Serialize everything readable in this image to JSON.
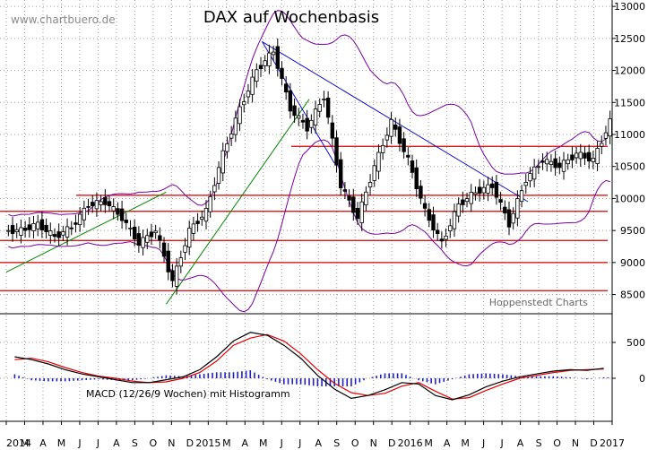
{
  "header": {
    "watermark": "www.chartbuero.de",
    "title": "DAX auf Wochenbasis",
    "source_note": "Hoppenstedt Charts",
    "macd_label": "MACD (12/26/9 Wochen) mit Histogramm"
  },
  "colors": {
    "candle": "#000000",
    "bollinger": "#7a00a0",
    "support_lines": "#d00000",
    "trend_blue": "#1010c8",
    "trend_green": "#008800",
    "macd_line": "#000000",
    "signal_line": "#e00000",
    "histogram": "#2020c0",
    "grid": "#9a9a9a"
  },
  "chart_data": [
    {
      "type": "candlestick",
      "title": "DAX auf Wochenbasis",
      "period": "weekly",
      "ylim": [
        8200,
        13100
      ],
      "y_ticks": [
        13000,
        12500,
        12000,
        11500,
        11000,
        10500,
        10000,
        9500,
        9000,
        8500
      ],
      "x_tick_labels": [
        "2014",
        "M",
        "A",
        "M",
        "J",
        "J",
        "A",
        "S",
        "O",
        "N",
        "D",
        "2015",
        "M",
        "A",
        "M",
        "J",
        "J",
        "A",
        "S",
        "O",
        "N",
        "D",
        "2016",
        "M",
        "A",
        "M",
        "J",
        "J",
        "A",
        "S",
        "O",
        "N",
        "D",
        "2017"
      ],
      "horizontal_levels": [
        10815,
        10050,
        9800,
        9345,
        9000,
        8560
      ],
      "close_series_approx": [
        {
          "date": "2014-01",
          "value": 9500
        },
        {
          "date": "2014-02",
          "value": 9600
        },
        {
          "date": "2014-03",
          "value": 9400
        },
        {
          "date": "2014-04",
          "value": 9550
        },
        {
          "date": "2014-05",
          "value": 9900
        },
        {
          "date": "2014-06",
          "value": 9950
        },
        {
          "date": "2014-07",
          "value": 9700
        },
        {
          "date": "2014-08",
          "value": 9300
        },
        {
          "date": "2014-09",
          "value": 9500
        },
        {
          "date": "2014-10",
          "value": 8700
        },
        {
          "date": "2014-11",
          "value": 9500
        },
        {
          "date": "2014-12",
          "value": 9800
        },
        {
          "date": "2015-01",
          "value": 10700
        },
        {
          "date": "2015-02",
          "value": 11400
        },
        {
          "date": "2015-03",
          "value": 12000
        },
        {
          "date": "2015-04",
          "value": 12300
        },
        {
          "date": "2015-05",
          "value": 11400
        },
        {
          "date": "2015-06",
          "value": 11100
        },
        {
          "date": "2015-07",
          "value": 11600
        },
        {
          "date": "2015-08",
          "value": 10200
        },
        {
          "date": "2015-09",
          "value": 9700
        },
        {
          "date": "2015-10",
          "value": 10500
        },
        {
          "date": "2015-11",
          "value": 11200
        },
        {
          "date": "2015-12",
          "value": 10600
        },
        {
          "date": "2016-01",
          "value": 9800
        },
        {
          "date": "2016-02",
          "value": 9300
        },
        {
          "date": "2016-03",
          "value": 9900
        },
        {
          "date": "2016-04",
          "value": 10100
        },
        {
          "date": "2016-05",
          "value": 10200
        },
        {
          "date": "2016-06",
          "value": 9600
        },
        {
          "date": "2016-07",
          "value": 10300
        },
        {
          "date": "2016-08",
          "value": 10600
        },
        {
          "date": "2016-09",
          "value": 10500
        },
        {
          "date": "2016-10",
          "value": 10700
        },
        {
          "date": "2016-11",
          "value": 10600
        },
        {
          "date": "2016-12",
          "value": 11200
        }
      ]
    },
    {
      "type": "line",
      "title": "MACD (12/26/9 Wochen) mit Histogramm",
      "ylim": [
        -600,
        900
      ],
      "y_ticks": [
        500,
        0
      ],
      "series": [
        {
          "name": "MACD",
          "values": [
            300,
            260,
            200,
            120,
            60,
            20,
            -20,
            -60,
            -60,
            -20,
            20,
            120,
            300,
            520,
            640,
            600,
            460,
            280,
            40,
            -150,
            -280,
            -240,
            -160,
            -60,
            -80,
            -240,
            -300,
            -230,
            -120,
            -40,
            20,
            60,
            100,
            120,
            110,
            140
          ]
        },
        {
          "name": "Signal",
          "values": [
            260,
            280,
            230,
            150,
            80,
            30,
            0,
            -40,
            -60,
            -50,
            0,
            80,
            240,
            460,
            560,
            610,
            520,
            340,
            120,
            -70,
            -200,
            -240,
            -210,
            -110,
            -60,
            -180,
            -290,
            -270,
            -170,
            -80,
            0,
            40,
            80,
            110,
            120,
            130
          ]
        }
      ]
    }
  ]
}
